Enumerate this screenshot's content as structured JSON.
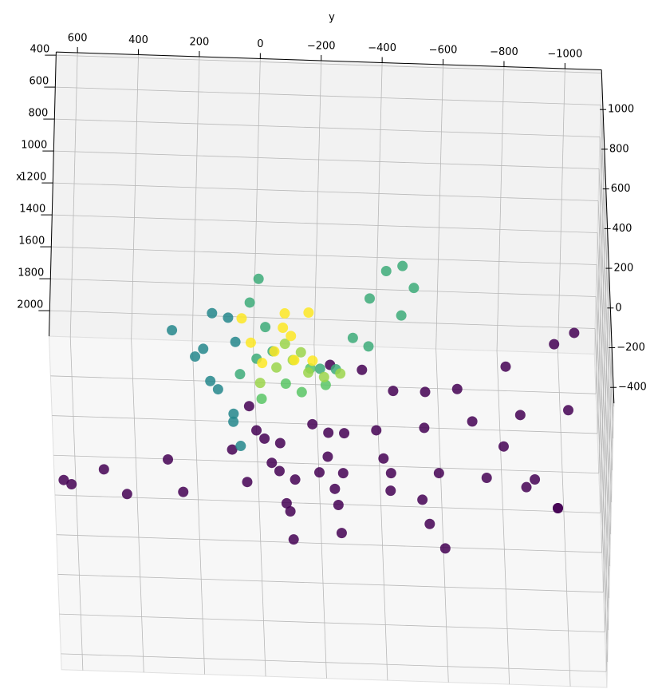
{
  "chart_data": {
    "type": "scatter3d",
    "xlabel": "x",
    "ylabel": "y",
    "cmap": "viridis",
    "grid": true,
    "xlim": [
      380,
      2160
    ],
    "ylim": [
      -1120,
      670
    ],
    "zlim": [
      -480,
      1200
    ],
    "xticks": [
      400,
      600,
      800,
      1000,
      1200,
      1400,
      1600,
      1800,
      2000
    ],
    "yticks": [
      600,
      400,
      200,
      0,
      {
        "value": -200,
        "label": "−200"
      },
      {
        "value": -400,
        "label": "−400"
      },
      {
        "value": -600,
        "label": "−600"
      },
      {
        "value": -800,
        "label": "−800"
      },
      {
        "value": -1000,
        "label": "−1000"
      }
    ],
    "zticks": [
      1000,
      800,
      600,
      400,
      200,
      0,
      {
        "value": -200,
        "label": "−200"
      },
      {
        "value": -400,
        "label": "−400"
      }
    ],
    "series": [
      {
        "x": [
          1196,
          1121,
          1046,
          971,
          921,
          846,
          821,
          796,
          746,
          696,
          656
        ],
        "y": [
          671,
          540,
          331,
          121,
          -36,
          -193,
          -350,
          -507,
          -664,
          -821,
          -978
        ],
        "z": [
          -300,
          -300,
          -300,
          -300,
          -300,
          -300,
          -300,
          -300,
          -300,
          -300,
          -300
        ]
      },
      {
        "x": [
          1221,
          1271,
          1246,
          1171,
          1146,
          1096,
          1086,
          1076,
          1096,
          1146,
          1271
        ],
        "y": [
          645,
          462,
          278,
          69,
          -88,
          -245,
          -402,
          -559,
          -716,
          -847,
          -952
        ],
        "z": [
          -300,
          -300,
          -300,
          -300,
          -300,
          -300,
          -300,
          -300,
          -300,
          -300,
          -300
        ]
      },
      {
        "x": [
          696,
          896,
          1096,
          1346,
          1521,
          1296,
          1046,
          846
        ],
        "y": [
          69,
          16,
          -36,
          -75,
          -88,
          -62,
          -10,
          43
        ],
        "z": [
          -300,
          -300,
          -300,
          -300,
          -300,
          -300,
          -300,
          -300
        ]
      },
      {
        "x": [
          796,
          996,
          1196,
          1471,
          1296,
          1096
        ],
        "y": [
          -140,
          -193,
          -219,
          -245,
          -232,
          -167
        ],
        "z": [
          -300,
          -300,
          -300,
          -300,
          -300,
          -300
        ]
      },
      {
        "x": [
          846,
          996,
          1246,
          1546,
          1396,
          1196
        ],
        "y": [
          -245,
          -376,
          -507,
          -586,
          -533,
          -402
        ],
        "z": [
          -300,
          -300,
          -300,
          -300,
          -300,
          -300
        ]
      },
      {
        "x": [
          421,
          446,
          571,
          571,
          546,
          396,
          246,
          171
        ],
        "y": [
          -193,
          -298,
          -402,
          -507,
          -612,
          -769,
          -926,
          -991
        ],
        "z": [
          -300,
          -300,
          -300,
          -300,
          -300,
          -300,
          -300,
          -300
        ]
      },
      {
        "x": [
          896,
          1096,
          1271
        ],
        "y": [
          -769,
          -874,
          -952
        ],
        "z": [
          -300,
          -300,
          -300
        ]
      },
      {
        "x": [
          981,
          1141,
          1341,
          1541,
          1691,
          1491,
          1291,
          1091,
          866,
          891,
          1041
        ],
        "y": [
          304,
          226,
          148,
          95,
          69,
          95,
          174,
          200,
          174,
          121,
          95
        ],
        "z": [
          300,
          300,
          300,
          300,
          300,
          300,
          300,
          300,
          300,
          300,
          300
        ]
      },
      {
        "x": [
          890,
          1040,
          1190,
          1340,
          1390,
          1490
        ],
        "y": [
          16,
          43,
          -10,
          -36,
          16,
          69
        ],
        "z": [
          500,
          500,
          500,
          500,
          500,
          500
        ]
      },
      {
        "x": [
          1440,
          1240,
          990,
          815,
          780,
          915,
          1090,
          1290,
          1440
        ],
        "y": [
          -193,
          -298,
          -350,
          -402,
          -455,
          -494,
          -455,
          -350,
          -245
        ],
        "z": [
          500,
          500,
          500,
          500,
          500,
          500,
          500,
          500,
          500
        ]
      },
      {
        "x": [
          1826,
          1726,
          1626,
          1726,
          1776
        ],
        "y": [
          -10,
          -88,
          -167,
          -219,
          -141
        ],
        "z": [
          650,
          650,
          650,
          650,
          650
        ]
      },
      {
        "x": [
          1913,
          1813,
          1763,
          1838,
          1863,
          1838,
          1663,
          1713
        ],
        "y": [
          -10,
          -62,
          -115,
          -167,
          -219,
          -272,
          -88,
          -141
        ],
        "z": [
          800,
          800,
          800,
          800,
          800,
          800,
          800,
          800
        ]
      },
      {
        "x": [
          1761,
          1911,
          2036,
          1961,
          1811,
          1721,
          1711,
          1861,
          2011,
          2011
        ],
        "y": [
          48,
          16,
          -23,
          -62,
          -88,
          -93,
          -171,
          -115,
          -128,
          -188
        ],
        "z": [
          1000,
          1000,
          1000,
          1000,
          1000,
          1000,
          1000,
          1000,
          1000,
          1000
        ]
      }
    ]
  }
}
